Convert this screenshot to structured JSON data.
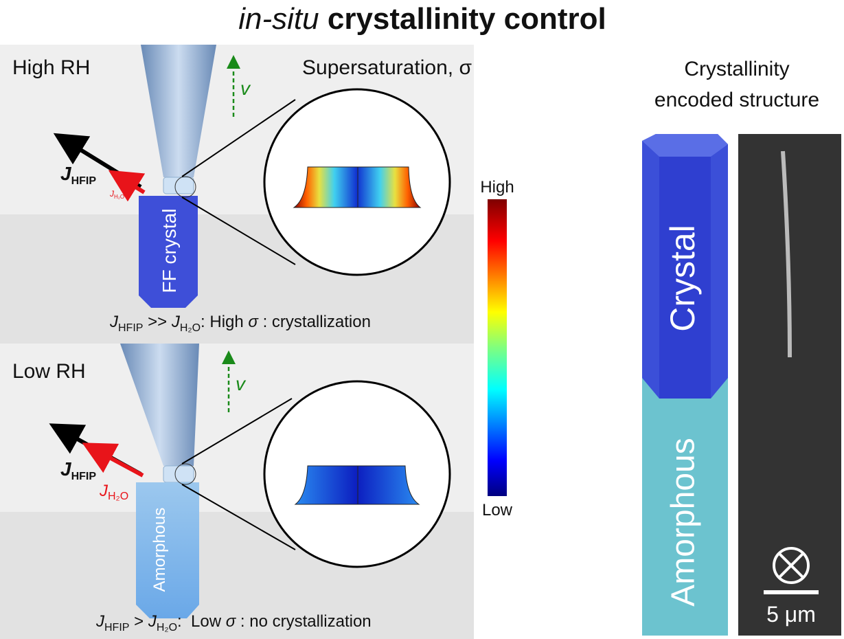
{
  "title": {
    "italic": "in-situ",
    "bold": "crystallinity control"
  },
  "top_panel": {
    "condition": "High RH",
    "heading": "Supersaturation, σ",
    "velocity": "v",
    "flux_hfip": {
      "symbol": "J",
      "subscript": "HFIP"
    },
    "flux_h2o": {
      "symbol": "J",
      "subscript": "H₂O"
    },
    "fiber_label": "FF crystal",
    "caption": [
      "J",
      "HFIP",
      " >> ",
      "J",
      "H₂O",
      ": High ",
      "σ",
      " : crystallization"
    ]
  },
  "bottom_panel": {
    "condition": "Low RH",
    "velocity": "v",
    "flux_hfip": {
      "symbol": "J",
      "subscript": "HFIP"
    },
    "flux_h2o": {
      "symbol": "J",
      "subscript": "H₂O"
    },
    "fiber_label": "Amorphous",
    "caption": [
      "J",
      "HFIP",
      " > ",
      "J",
      "H₂O",
      ":  Low ",
      "σ",
      " : no crystallization"
    ]
  },
  "colorbar": {
    "high": "High",
    "low": "Low"
  },
  "structure": {
    "title": [
      "Crystallinity",
      "encoded structure"
    ],
    "crystal_label": "Crystal",
    "amorphous_label": "Amorphous",
    "scale_bar": "5 μm"
  }
}
